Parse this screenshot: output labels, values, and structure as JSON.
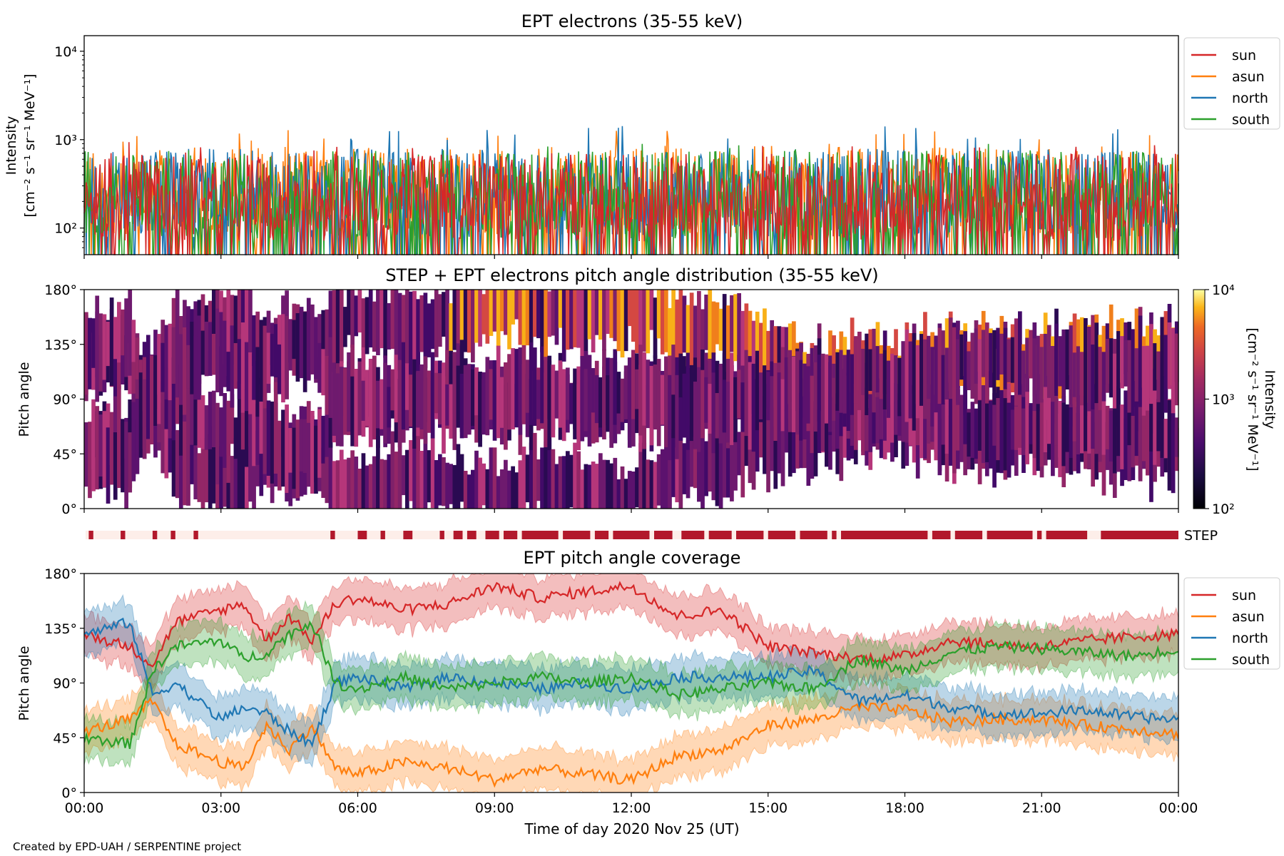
{
  "credit": "Created by EPD-UAH / SERPENTINE project",
  "colors": {
    "sun": "#d62728",
    "asun": "#ff7f0e",
    "north": "#1f77b4",
    "south": "#2ca02c",
    "step_bar": "#b2182b",
    "step_bg": "#fdeee9"
  },
  "chart_data": [
    {
      "type": "line",
      "title": "EPT electrons (35-55 keV)",
      "ylabel_line1": "Intensity",
      "ylabel_line2": "[cm⁻² s⁻¹ sr⁻¹ MeV⁻¹]",
      "yscale": "log",
      "ylim": [
        50,
        15000
      ],
      "yticks": [
        {
          "value": 100,
          "label": "10²"
        },
        {
          "value": 1000,
          "label": "10³"
        },
        {
          "value": 10000,
          "label": "10⁴"
        }
      ],
      "xlim_hours": [
        0,
        24
      ],
      "legend_position": "upper right outside",
      "series": [
        {
          "name": "sun",
          "color": "#d62728",
          "typical": 250,
          "peak": 950
        },
        {
          "name": "asun",
          "color": "#ff7f0e",
          "typical": 300,
          "peak": 1300
        },
        {
          "name": "north",
          "color": "#1f77b4",
          "typical": 280,
          "peak": 1450
        },
        {
          "name": "south",
          "color": "#2ca02c",
          "typical": 270,
          "peak": 900
        }
      ]
    },
    {
      "type": "heatmap",
      "title": "STEP + EPT electrons pitch angle distribution (35-55 keV)",
      "ylabel": "Pitch angle",
      "ylim": [
        0,
        180
      ],
      "yticks": [
        "0°",
        "45°",
        "90°",
        "135°",
        "180°"
      ],
      "colorbar": {
        "scale": "log",
        "range": [
          100,
          10000
        ],
        "ticks": [
          "10²",
          "10³",
          "10⁴"
        ],
        "label_line1": "Intensity",
        "label_line2": "[cm⁻² s⁻¹ sr⁻¹ MeV⁻¹]",
        "colormap": "inferno"
      }
    },
    {
      "type": "timeline",
      "label": "STEP",
      "segments_hours": [
        [
          0.1,
          0.2
        ],
        [
          0.8,
          0.9
        ],
        [
          1.5,
          1.6
        ],
        [
          1.9,
          2.0
        ],
        [
          2.4,
          2.5
        ],
        [
          5.4,
          5.5
        ],
        [
          6.0,
          6.2
        ],
        [
          6.5,
          6.6
        ],
        [
          7.0,
          7.2
        ],
        [
          7.8,
          7.9
        ],
        [
          8.1,
          8.3
        ],
        [
          8.4,
          8.6
        ],
        [
          8.8,
          9.1
        ],
        [
          9.2,
          9.5
        ],
        [
          9.6,
          10.4
        ],
        [
          10.5,
          11.1
        ],
        [
          11.2,
          11.5
        ],
        [
          11.6,
          12.4
        ],
        [
          12.5,
          12.9
        ],
        [
          13.1,
          13.6
        ],
        [
          13.7,
          14.2
        ],
        [
          14.3,
          14.9
        ],
        [
          15.0,
          15.6
        ],
        [
          15.7,
          16.3
        ],
        [
          16.4,
          16.5
        ],
        [
          16.6,
          18.5
        ],
        [
          18.6,
          19.0
        ],
        [
          19.1,
          19.7
        ],
        [
          19.8,
          20.8
        ],
        [
          20.9,
          21.0
        ],
        [
          21.1,
          22.0
        ],
        [
          22.3,
          24.0
        ]
      ]
    },
    {
      "type": "line",
      "title": "EPT pitch angle coverage",
      "ylabel": "Pitch angle",
      "ylim": [
        0,
        180
      ],
      "yticks": [
        "0°",
        "45°",
        "90°",
        "135°",
        "180°"
      ],
      "xlabel": "Time of day 2020 Nov 25 (UT)",
      "xticks": [
        "00:00",
        "03:00",
        "06:00",
        "09:00",
        "12:00",
        "15:00",
        "18:00",
        "21:00",
        "00:00"
      ],
      "legend_position": "upper right outside",
      "series": [
        {
          "name": "sun",
          "color": "#d62728",
          "x_hours": [
            0,
            1,
            1.5,
            2,
            3,
            3.5,
            4,
            4.5,
            5,
            5.5,
            6,
            7,
            8,
            9,
            10,
            11,
            12,
            13,
            14,
            15,
            16,
            17,
            18,
            19,
            20,
            21,
            22,
            23,
            24
          ],
          "y_deg": [
            130,
            120,
            105,
            140,
            150,
            155,
            125,
            145,
            125,
            155,
            160,
            150,
            155,
            170,
            160,
            165,
            170,
            145,
            150,
            120,
            115,
            110,
            112,
            125,
            122,
            120,
            125,
            128,
            130
          ]
        },
        {
          "name": "asun",
          "color": "#ff7f0e",
          "x_hours": [
            0,
            1,
            1.5,
            2,
            3,
            3.5,
            4,
            4.5,
            5,
            5.5,
            6,
            7,
            8,
            9,
            10,
            11,
            12,
            13,
            14,
            15,
            16,
            17,
            18,
            19,
            20,
            21,
            22,
            23,
            24
          ],
          "y_deg": [
            50,
            60,
            75,
            40,
            25,
            20,
            55,
            35,
            55,
            20,
            15,
            25,
            20,
            10,
            20,
            15,
            10,
            30,
            35,
            55,
            60,
            70,
            68,
            58,
            60,
            60,
            55,
            52,
            48
          ]
        },
        {
          "name": "north",
          "color": "#1f77b4",
          "x_hours": [
            0,
            1,
            1.5,
            2,
            3,
            3.5,
            4,
            4.5,
            5,
            5.5,
            6,
            7,
            8,
            9,
            10,
            11,
            12,
            13,
            14,
            15,
            16,
            17,
            18,
            19,
            20,
            21,
            22,
            23,
            24
          ],
          "y_deg": [
            130,
            140,
            80,
            90,
            60,
            70,
            65,
            50,
            40,
            90,
            95,
            85,
            95,
            90,
            85,
            90,
            85,
            95,
            95,
            95,
            100,
            75,
            80,
            70,
            65,
            65,
            68,
            62,
            60
          ]
        },
        {
          "name": "south",
          "color": "#2ca02c",
          "x_hours": [
            0,
            1,
            1.5,
            2,
            3,
            3.5,
            4,
            4.5,
            5,
            5.5,
            6,
            7,
            8,
            9,
            10,
            11,
            12,
            13,
            14,
            15,
            16,
            17,
            18,
            19,
            20,
            21,
            22,
            23,
            24
          ],
          "y_deg": [
            45,
            40,
            100,
            120,
            125,
            110,
            115,
            130,
            140,
            90,
            85,
            95,
            85,
            90,
            95,
            90,
            95,
            80,
            85,
            90,
            85,
            110,
            100,
            115,
            120,
            118,
            115,
            112,
            118
          ]
        }
      ]
    }
  ]
}
